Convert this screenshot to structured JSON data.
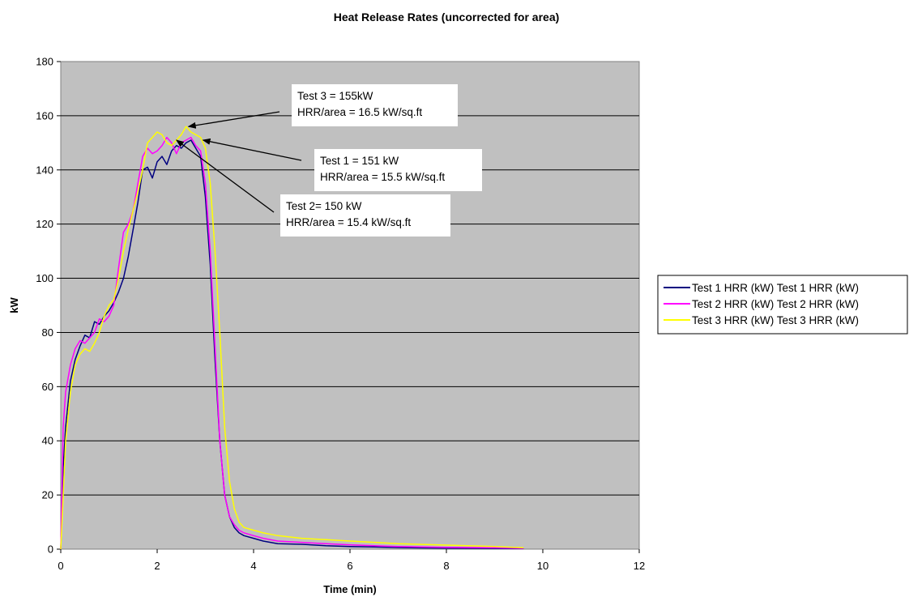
{
  "chart_data": {
    "type": "line",
    "title": "Heat Release Rates (uncorrected for area)",
    "xlabel": "Time (min)",
    "ylabel": "kW",
    "xlim": [
      0,
      12
    ],
    "ylim": [
      0,
      180
    ],
    "x_ticks": [
      0,
      2,
      4,
      6,
      8,
      10,
      12
    ],
    "y_ticks": [
      0,
      20,
      40,
      60,
      80,
      100,
      120,
      140,
      160,
      180
    ],
    "grid": "horizontal",
    "plot_background": "#C0C0C0",
    "legend_position": "right",
    "series": [
      {
        "name": "Test 1 HRR (kW) Test 1 HRR (kW)",
        "color": "#000080",
        "x": [
          0,
          0.05,
          0.1,
          0.2,
          0.3,
          0.4,
          0.5,
          0.6,
          0.7,
          0.8,
          0.9,
          1.0,
          1.1,
          1.2,
          1.3,
          1.4,
          1.5,
          1.6,
          1.7,
          1.8,
          1.9,
          2.0,
          2.1,
          2.2,
          2.3,
          2.4,
          2.5,
          2.6,
          2.7,
          2.8,
          2.9,
          3.0,
          3.1,
          3.2,
          3.3,
          3.4,
          3.5,
          3.6,
          3.7,
          3.8,
          4.0,
          4.2,
          4.5,
          5.0,
          5.5,
          6.0,
          6.5,
          7.0,
          8.0,
          9.0,
          9.6
        ],
        "values": [
          0,
          30,
          45,
          62,
          70,
          75,
          79,
          78,
          84,
          83,
          86,
          88,
          91,
          95,
          100,
          108,
          118,
          128,
          140,
          141,
          137,
          143,
          145,
          142,
          147,
          149,
          148,
          150,
          151,
          148,
          145,
          130,
          105,
          70,
          40,
          20,
          12,
          8,
          6,
          5,
          4,
          3,
          2,
          1.8,
          1.3,
          1.0,
          0.8,
          0.6,
          0.4,
          0.3,
          0.2
        ]
      },
      {
        "name": "Test 2 HRR (kW) Test 2 HRR (kW)",
        "color": "#FF00FF",
        "x": [
          0,
          0.05,
          0.1,
          0.2,
          0.3,
          0.4,
          0.5,
          0.6,
          0.7,
          0.8,
          0.9,
          1.0,
          1.1,
          1.2,
          1.3,
          1.4,
          1.5,
          1.6,
          1.7,
          1.8,
          1.9,
          2.0,
          2.1,
          2.2,
          2.3,
          2.4,
          2.5,
          2.6,
          2.7,
          2.8,
          2.9,
          3.0,
          3.1,
          3.2,
          3.3,
          3.4,
          3.5,
          3.6,
          3.7,
          3.8,
          4.0,
          4.2,
          4.5,
          5.0,
          5.5,
          6.0,
          6.5,
          7.0,
          8.0,
          9.0,
          9.6
        ],
        "values": [
          0,
          45,
          58,
          68,
          74,
          77,
          76,
          78,
          80,
          85,
          84,
          86,
          90,
          104,
          117,
          120,
          125,
          135,
          145,
          148,
          146,
          147,
          149,
          152,
          150,
          146,
          150,
          151,
          152,
          149,
          147,
          135,
          110,
          75,
          40,
          20,
          12,
          9,
          7,
          6,
          5,
          4,
          3,
          2.5,
          2,
          1.6,
          1.3,
          1.0,
          0.7,
          0.5,
          0.3
        ]
      },
      {
        "name": "Test 3 HRR (kW) Test 3 HRR (kW)",
        "color": "#FFFF00",
        "x": [
          0,
          0.05,
          0.1,
          0.2,
          0.3,
          0.4,
          0.5,
          0.6,
          0.7,
          0.8,
          0.9,
          1.0,
          1.1,
          1.2,
          1.3,
          1.4,
          1.5,
          1.6,
          1.7,
          1.8,
          1.9,
          2.0,
          2.1,
          2.2,
          2.3,
          2.4,
          2.5,
          2.6,
          2.7,
          2.8,
          2.9,
          3.0,
          3.1,
          3.2,
          3.3,
          3.4,
          3.5,
          3.6,
          3.7,
          3.8,
          4.0,
          4.2,
          4.5,
          5.0,
          5.5,
          6.0,
          6.5,
          7.0,
          8.0,
          9.0,
          9.6
        ],
        "values": [
          0,
          20,
          40,
          58,
          68,
          72,
          74,
          73,
          76,
          80,
          86,
          90,
          92,
          100,
          110,
          118,
          125,
          132,
          140,
          150,
          152,
          154,
          153,
          150,
          149,
          151,
          153,
          156,
          154,
          153,
          152,
          148,
          135,
          110,
          80,
          45,
          25,
          15,
          10,
          8,
          7,
          6,
          5,
          4,
          3.5,
          3,
          2.5,
          2,
          1.5,
          1,
          0.5
        ]
      }
    ],
    "annotations": [
      {
        "lines": [
          "Test 3 = 155kW",
          "HRR/area = 16.5 kW/sq.ft"
        ],
        "target_x": 2.65,
        "target_y": 156
      },
      {
        "lines": [
          "Test 1 = 151 kW",
          "HRR/area = 15.5 kW/sq.ft"
        ],
        "target_x": 2.95,
        "target_y": 151
      },
      {
        "lines": [
          "Test 2= 150 kW",
          "HRR/area = 15.4 kW/sq.ft"
        ],
        "target_x": 2.4,
        "target_y": 151
      }
    ]
  }
}
